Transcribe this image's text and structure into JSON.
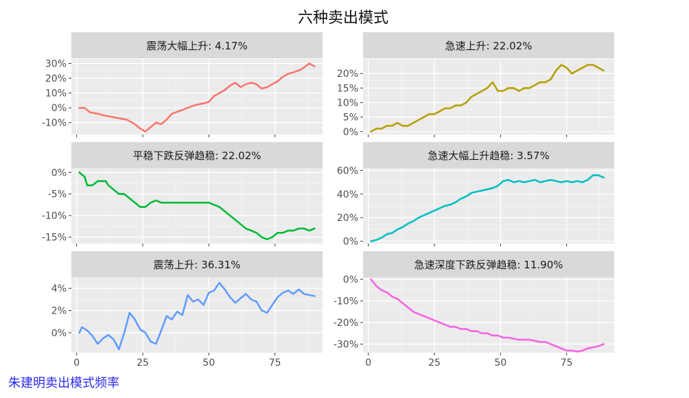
{
  "title": "六种卖出模式",
  "caption": "朱建明卖出模式频率",
  "x_ticks": [
    0,
    25,
    50,
    75
  ],
  "chart_data": [
    {
      "type": "line",
      "title": "震荡大幅上升: 4.17%",
      "color": "#F8766D",
      "xlim": [
        -2,
        93
      ],
      "ylim": [
        -18,
        33
      ],
      "y_ticks": [
        30,
        20,
        10,
        0,
        -10
      ],
      "y_tick_labels": [
        "30%",
        "20%",
        "10%",
        "0%",
        "-10%"
      ],
      "x_tick_labels": [],
      "x": [
        1,
        3,
        5,
        8,
        10,
        13,
        16,
        19,
        22,
        24,
        26,
        28,
        30,
        32,
        34,
        36,
        39,
        42,
        45,
        48,
        50,
        52,
        54,
        56,
        58,
        60,
        62,
        64,
        66,
        68,
        70,
        72,
        74,
        76,
        78,
        80,
        82,
        85,
        88,
        90
      ],
      "y": [
        0,
        0,
        -3,
        -4,
        -5,
        -6,
        -7,
        -8,
        -11,
        -14,
        -16,
        -13,
        -10,
        -11,
        -8,
        -4,
        -2,
        0,
        2,
        3,
        4,
        8,
        10,
        12,
        15,
        17,
        14,
        16,
        17,
        16,
        13,
        14,
        16,
        18,
        21,
        23,
        24,
        26,
        30,
        28
      ]
    },
    {
      "type": "line",
      "title": "急速上升: 22.02%",
      "color": "#B79F00",
      "xlim": [
        -2,
        93
      ],
      "ylim": [
        -1,
        25
      ],
      "y_ticks": [
        20,
        15,
        10,
        5,
        0
      ],
      "y_tick_labels": [
        "20%",
        "15%",
        "10%",
        "5%",
        "0%"
      ],
      "x_tick_labels": [],
      "x": [
        1,
        3,
        5,
        7,
        9,
        11,
        13,
        15,
        17,
        19,
        21,
        23,
        25,
        27,
        29,
        31,
        33,
        35,
        37,
        39,
        41,
        43,
        45,
        47,
        49,
        51,
        53,
        55,
        57,
        59,
        61,
        63,
        65,
        67,
        69,
        71,
        73,
        75,
        77,
        79,
        81,
        83,
        85,
        87,
        89
      ],
      "y": [
        0,
        1,
        1,
        2,
        2,
        3,
        2,
        2,
        3,
        4,
        5,
        6,
        6,
        7,
        8,
        8,
        9,
        9,
        10,
        12,
        13,
        14,
        15,
        17,
        14,
        14,
        15,
        15,
        14,
        15,
        15,
        16,
        17,
        17,
        18,
        21,
        23,
        22,
        20,
        21,
        22,
        23,
        23,
        22,
        21
      ]
    },
    {
      "type": "line",
      "title": "平稳下跌反弹趋稳: 22.02%",
      "color": "#00BA38",
      "xlim": [
        -2,
        93
      ],
      "ylim": [
        -16.5,
        1
      ],
      "y_ticks": [
        0,
        -5,
        -10,
        -15
      ],
      "y_tick_labels": [
        "0%",
        "-5%",
        "-10%",
        "-15%"
      ],
      "x_tick_labels": [],
      "x": [
        1,
        3,
        4,
        6,
        8,
        9,
        11,
        12,
        14,
        16,
        18,
        20,
        22,
        24,
        26,
        28,
        30,
        32,
        34,
        36,
        38,
        40,
        42,
        44,
        46,
        48,
        50,
        52,
        54,
        56,
        58,
        60,
        62,
        64,
        66,
        68,
        70,
        72,
        74,
        76,
        78,
        80,
        82,
        84,
        86,
        88,
        90
      ],
      "y": [
        0,
        -1,
        -3,
        -3,
        -2,
        -2,
        -2,
        -3,
        -4,
        -5,
        -5,
        -6,
        -7,
        -8,
        -8,
        -7,
        -6.5,
        -7,
        -7,
        -7,
        -7,
        -7,
        -7,
        -7,
        -7,
        -7,
        -7,
        -7.5,
        -8,
        -9,
        -10,
        -11,
        -12,
        -13,
        -13.5,
        -14,
        -15,
        -15.5,
        -15,
        -14,
        -14,
        -13.5,
        -13.5,
        -13,
        -13,
        -13.5,
        -13
      ]
    },
    {
      "type": "line",
      "title": "急速大幅上升趋稳: 3.57%",
      "color": "#00BFC4",
      "xlim": [
        -2,
        93
      ],
      "ylim": [
        -2,
        62
      ],
      "y_ticks": [
        60,
        40,
        20,
        0
      ],
      "y_tick_labels": [
        "60%",
        "40%",
        "20%",
        "0%"
      ],
      "x_tick_labels": [],
      "x": [
        1,
        3,
        5,
        7,
        9,
        11,
        13,
        15,
        17,
        19,
        21,
        23,
        25,
        27,
        29,
        31,
        33,
        35,
        37,
        39,
        41,
        43,
        45,
        47,
        49,
        51,
        53,
        55,
        57,
        59,
        61,
        63,
        65,
        67,
        69,
        71,
        73,
        75,
        77,
        79,
        81,
        83,
        85,
        87,
        89
      ],
      "y": [
        0,
        1,
        3,
        6,
        7,
        10,
        12,
        15,
        17,
        20,
        22,
        24,
        26,
        28,
        30,
        31,
        33,
        36,
        38,
        41,
        42,
        43,
        44,
        45,
        47,
        51,
        52,
        50,
        51,
        50,
        51,
        52,
        50,
        51,
        52,
        51,
        50,
        51,
        50,
        51,
        50,
        52,
        56,
        56,
        54
      ]
    },
    {
      "type": "line",
      "title": "震荡上升: 36.31%",
      "color": "#619CFF",
      "xlim": [
        -2,
        93
      ],
      "ylim": [
        -1.8,
        5
      ],
      "y_ticks": [
        4,
        2,
        0
      ],
      "y_tick_labels": [
        "4%",
        "2%",
        "0%"
      ],
      "x_tick_labels": [
        "0",
        "25",
        "50",
        "75"
      ],
      "x": [
        1,
        2,
        4,
        6,
        8,
        10,
        12,
        14,
        16,
        18,
        20,
        22,
        24,
        26,
        28,
        30,
        32,
        34,
        36,
        38,
        40,
        42,
        44,
        46,
        48,
        50,
        52,
        54,
        56,
        58,
        60,
        62,
        64,
        66,
        68,
        70,
        72,
        74,
        76,
        78,
        80,
        82,
        84,
        86,
        88,
        90
      ],
      "y": [
        0,
        0.5,
        0.2,
        -0.3,
        -1,
        -0.5,
        -0.2,
        -0.6,
        -1.5,
        0,
        1.8,
        1.2,
        0.3,
        0,
        -0.8,
        -1,
        0.2,
        1.5,
        1.2,
        1.9,
        1.6,
        3.4,
        2.8,
        3.0,
        2.5,
        3.6,
        3.8,
        4.5,
        3.9,
        3.2,
        2.7,
        3.1,
        3.5,
        3.0,
        2.8,
        2.0,
        1.8,
        2.5,
        3.2,
        3.6,
        3.8,
        3.5,
        3.9,
        3.5,
        3.4,
        3.3
      ]
    },
    {
      "type": "line",
      "title": "急速深度下跌反弹趋稳: 11.90%",
      "color": "#F564E3",
      "xlim": [
        -2,
        93
      ],
      "ylim": [
        -34,
        1
      ],
      "y_ticks": [
        0,
        -10,
        -20,
        -30
      ],
      "y_tick_labels": [
        "0%",
        "-10%",
        "-20%",
        "-30%"
      ],
      "x_tick_labels": [
        "0",
        "25",
        "50",
        "75"
      ],
      "x": [
        1,
        3,
        5,
        7,
        9,
        11,
        13,
        15,
        17,
        19,
        21,
        23,
        25,
        27,
        29,
        31,
        33,
        35,
        37,
        39,
        41,
        43,
        45,
        47,
        49,
        51,
        53,
        55,
        57,
        59,
        61,
        63,
        65,
        67,
        69,
        71,
        73,
        75,
        77,
        79,
        81,
        83,
        85,
        87,
        89
      ],
      "y": [
        0,
        -3,
        -5,
        -6,
        -8,
        -9,
        -11,
        -13,
        -15,
        -16,
        -17,
        -18,
        -19,
        -20,
        -21,
        -22,
        -22,
        -23,
        -23,
        -24,
        -24,
        -25,
        -25,
        -26,
        -26,
        -27,
        -27,
        -27.5,
        -28,
        -28,
        -28,
        -28.5,
        -29,
        -29,
        -30,
        -31,
        -32,
        -33,
        -33,
        -33.5,
        -33,
        -32,
        -31.5,
        -31,
        -30
      ]
    }
  ]
}
